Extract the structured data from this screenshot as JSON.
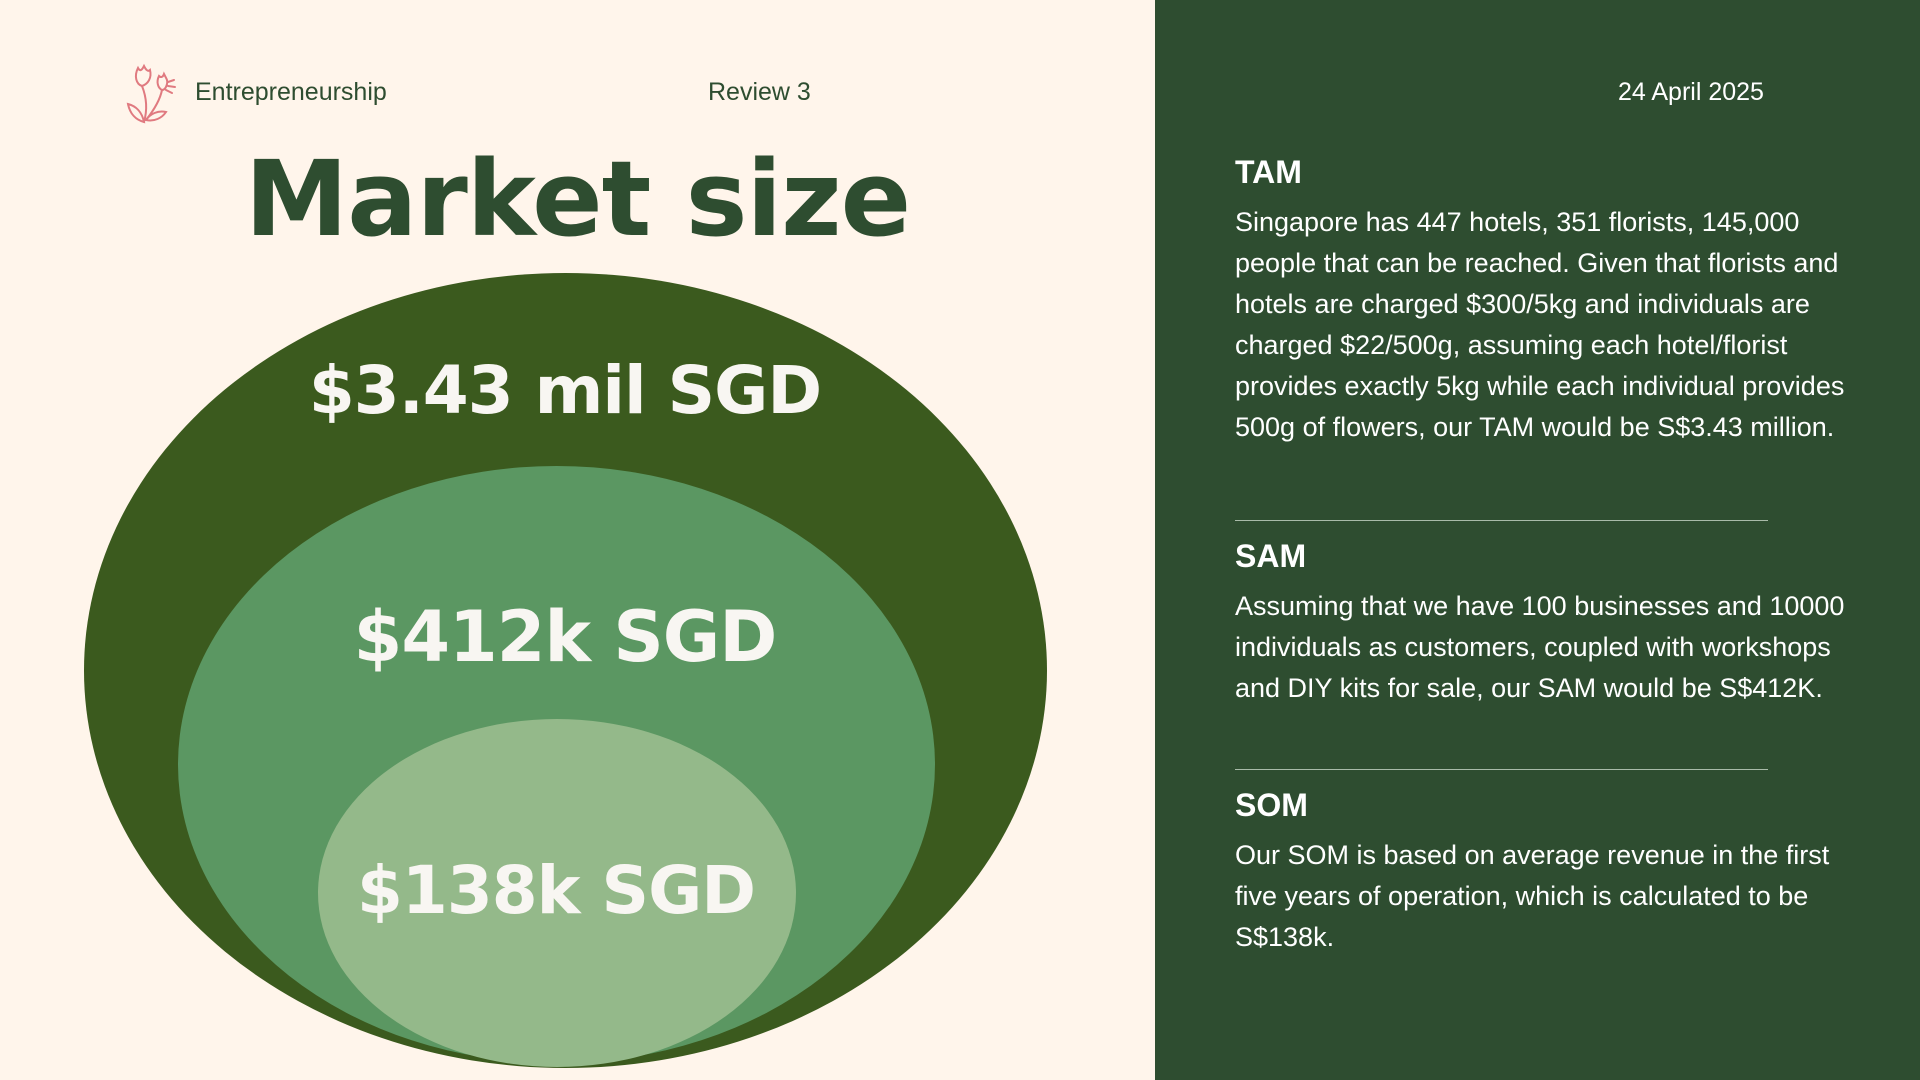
{
  "header": {
    "brand": "Entrepreneurship",
    "review": "Review 3",
    "date": "24 April 2025",
    "logo_icon": "tulip-icon"
  },
  "title": "Market size",
  "diagram": {
    "tam_value": "$3.43 mil SGD",
    "sam_value": "$412k SGD",
    "som_value": "$138k SGD",
    "colors": {
      "tam": "#3b5a1e",
      "sam": "#5b9762",
      "som": "#94b98a"
    }
  },
  "sections": {
    "tam": {
      "heading": "TAM",
      "text": "Singapore has 447 hotels, 351 florists, 145,000 people that can be reached. Given that florists and hotels are charged $300/5kg and individuals are charged $22/500g, assuming each hotel/florist provides exactly 5kg while each individual provides 500g of flowers, our TAM would be S$3.43 million."
    },
    "sam": {
      "heading": "SAM",
      "text": "Assuming that we have 100 businesses and 10000 individuals as customers, coupled with workshops and DIY kits for sale, our SAM would be S$412K."
    },
    "som": {
      "heading": "SOM",
      "text": "Our SOM is based on average revenue in the first five years of operation, which is calculated to be S$138k."
    }
  },
  "colors": {
    "left_bg": "#fff5eb",
    "right_bg": "#2e4d30",
    "accent": "#e07a80"
  }
}
